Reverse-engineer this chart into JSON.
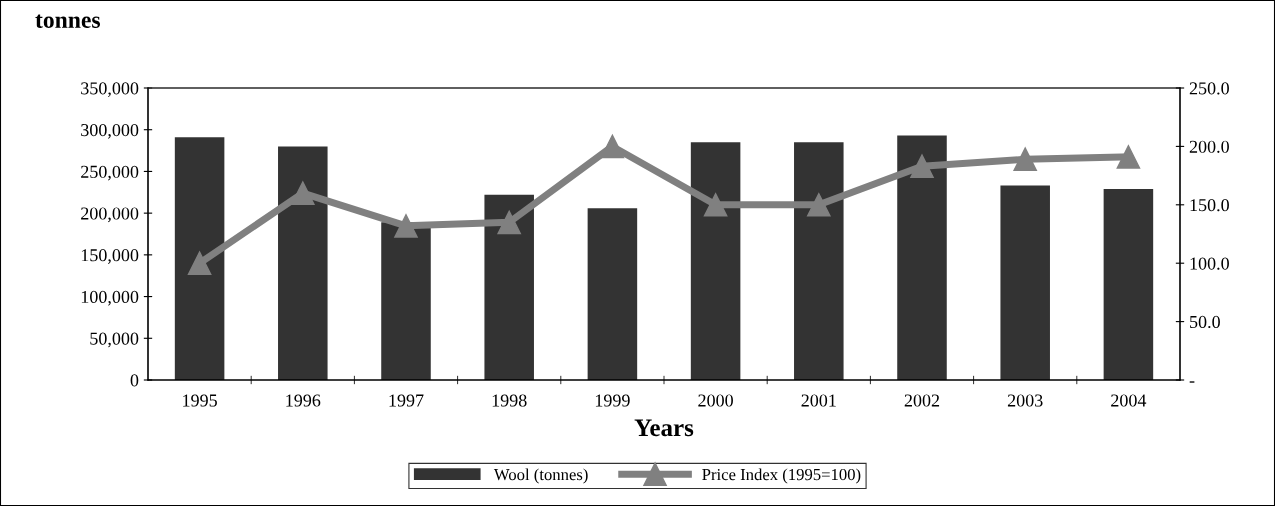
{
  "chart_data": {
    "type": "bar",
    "title": "tonnes",
    "xlabel": "Years",
    "categories": [
      "1995",
      "1996",
      "1997",
      "1998",
      "1999",
      "2000",
      "2001",
      "2002",
      "2003",
      "2004"
    ],
    "series": [
      {
        "name": "Wool (tonnes)",
        "color": "#333333",
        "values": [
          291000,
          280000,
          189000,
          222000,
          206000,
          285000,
          285000,
          293000,
          233000,
          229000
        ]
      },
      {
        "name": "Price Index (1995=100)",
        "type": "line",
        "axis": "y2",
        "color": "#808080",
        "marker": "triangle",
        "values": [
          100,
          160,
          132,
          135,
          200,
          150,
          150,
          183,
          189,
          191
        ]
      }
    ],
    "ylim": [
      0,
      350000
    ],
    "yticks": [
      {
        "value": 0,
        "label": "0"
      },
      {
        "value": 50000,
        "label": "50,000"
      },
      {
        "value": 100000,
        "label": "100,000"
      },
      {
        "value": 150000,
        "label": "150,000"
      },
      {
        "value": 200000,
        "label": "200,000"
      },
      {
        "value": 250000,
        "label": "250,000"
      },
      {
        "value": 300000,
        "label": "300,000"
      },
      {
        "value": 350000,
        "label": "350,000"
      }
    ],
    "y2lim": [
      0,
      250
    ],
    "y2ticks": [
      {
        "value": 0,
        "label": "-"
      },
      {
        "value": 50,
        "label": "50.0"
      },
      {
        "value": 100,
        "label": "100.0"
      },
      {
        "value": 150,
        "label": "150.0"
      },
      {
        "value": 200,
        "label": "200.0"
      },
      {
        "value": 250,
        "label": "250.0"
      }
    ],
    "grid": false,
    "legend": "bottom"
  }
}
